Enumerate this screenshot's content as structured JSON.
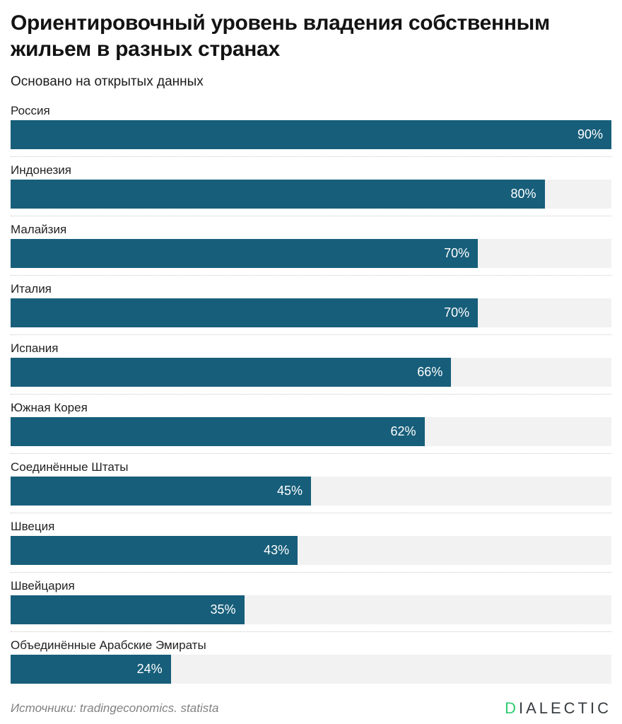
{
  "header": {
    "title": "Ориентировочный уровень владения собственным жильем в разных странах",
    "subtitle": "Основано на открытых данных"
  },
  "chart_data": {
    "type": "bar",
    "orientation": "horizontal",
    "title": "Ориентировочный уровень владения собственным жильем в разных странах",
    "subtitle": "Основано на открытых данных",
    "categories": [
      "Россия",
      "Индонезия",
      "Малайзия",
      "Италия",
      "Испания",
      "Южная Корея",
      "Соединённые Штаты",
      "Швеция",
      "Швейцария",
      "Объединённые Арабские Эмираты"
    ],
    "values": [
      90,
      80,
      70,
      70,
      66,
      62,
      45,
      43,
      35,
      24
    ],
    "value_labels": [
      "90%",
      "80%",
      "70%",
      "70%",
      "66%",
      "62%",
      "45%",
      "43%",
      "35%",
      "24%"
    ],
    "unit": "%",
    "scale_max": 90,
    "bar_color": "#175e7a",
    "track_color": "#f2f2f2",
    "grid": false,
    "legend": false
  },
  "footer": {
    "source": "Источники: tradingeconomics. statista",
    "logo_first_letter": "D",
    "logo_rest": "IALECTIC",
    "logo_accent_color": "#2ecc71"
  }
}
